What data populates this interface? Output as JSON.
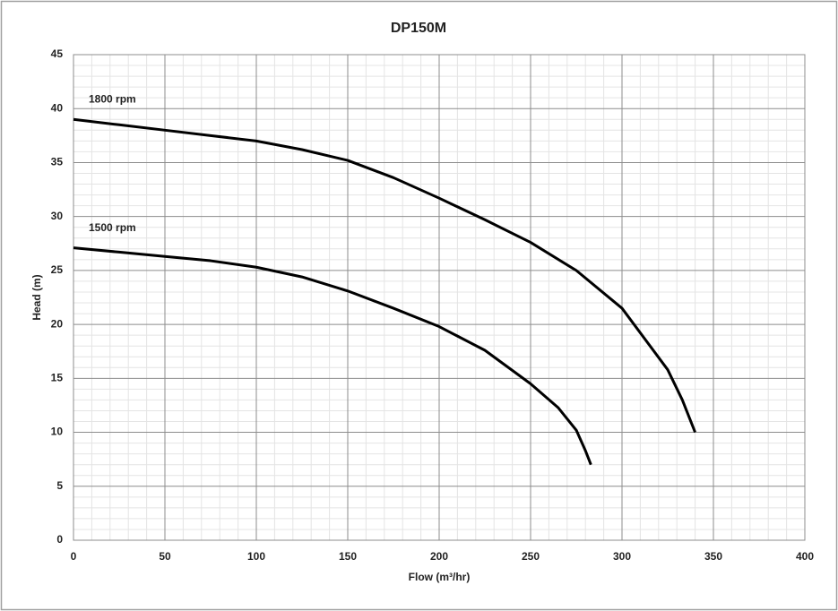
{
  "chart_data": {
    "type": "line",
    "title": "DP150M",
    "x_label": "Flow (m³/hr)",
    "y_label": "Head (m)",
    "xlim": [
      0,
      400
    ],
    "xticks": [
      0,
      50,
      100,
      150,
      200,
      250,
      300,
      350,
      400
    ],
    "ylim": [
      0,
      45
    ],
    "yticks": [
      0,
      5,
      10,
      15,
      20,
      25,
      30,
      35,
      40,
      45
    ],
    "grid": true,
    "legend": false,
    "series": [
      {
        "name": "1800 rpm",
        "color": "#000000",
        "x": [
          0,
          25,
          50,
          75,
          100,
          125,
          150,
          175,
          200,
          225,
          250,
          275,
          300,
          325,
          333,
          340
        ],
        "values": [
          39,
          38.5,
          38,
          37.5,
          37,
          36.2,
          35.2,
          33.6,
          31.7,
          29.7,
          27.6,
          25,
          21.5,
          15.8,
          13,
          10
        ]
      },
      {
        "name": "1500 rpm",
        "color": "#000000",
        "x": [
          0,
          25,
          50,
          75,
          100,
          125,
          150,
          175,
          200,
          225,
          250,
          265,
          275,
          280,
          283
        ],
        "values": [
          27.1,
          26.7,
          26.3,
          25.9,
          25.3,
          24.4,
          23.1,
          21.5,
          19.8,
          17.6,
          14.5,
          12.3,
          10.2,
          8.3,
          7
        ]
      }
    ]
  }
}
